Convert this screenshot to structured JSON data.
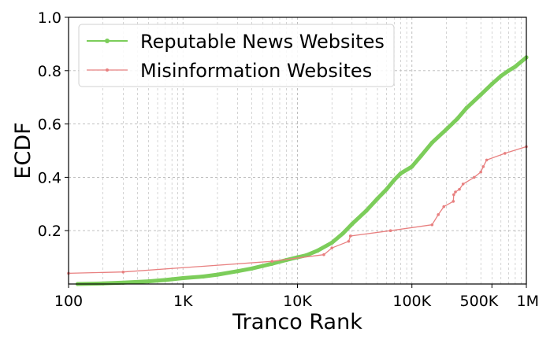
{
  "chart_data": {
    "type": "line",
    "title": "",
    "xlabel": "Tranco Rank",
    "ylabel": "ECDF",
    "xscale": "log",
    "xlim": [
      100,
      1000000
    ],
    "ylim": [
      0,
      1
    ],
    "grid": true,
    "legend_position": "top-left",
    "x_ticks": [
      {
        "value": 100,
        "label": "100"
      },
      {
        "value": 1000,
        "label": "1K"
      },
      {
        "value": 10000,
        "label": "10K"
      },
      {
        "value": 100000,
        "label": "100K"
      },
      {
        "value": 500000,
        "label": "500K"
      },
      {
        "value": 1000000,
        "label": "1M"
      }
    ],
    "y_ticks": [
      {
        "value": 0.2,
        "label": "0.2"
      },
      {
        "value": 0.4,
        "label": "0.4"
      },
      {
        "value": 0.6,
        "label": "0.6"
      },
      {
        "value": 0.8,
        "label": "0.8"
      },
      {
        "value": 1.0,
        "label": "1.0"
      }
    ],
    "series": [
      {
        "name": "Reputable News Websites",
        "color": "#7ccd5a",
        "x": [
          120,
          200,
          300,
          500,
          700,
          1000,
          1500,
          2000,
          3000,
          4000,
          5000,
          6000,
          8000,
          10000,
          12000,
          15000,
          20000,
          25000,
          30000,
          40000,
          50000,
          60000,
          70000,
          80000,
          100000,
          120000,
          150000,
          200000,
          250000,
          300000,
          400000,
          500000,
          600000,
          700000,
          800000,
          1000000
        ],
        "y": [
          0.0,
          0.002,
          0.005,
          0.01,
          0.015,
          0.022,
          0.028,
          0.035,
          0.048,
          0.058,
          0.068,
          0.076,
          0.09,
          0.1,
          0.108,
          0.125,
          0.155,
          0.19,
          0.225,
          0.275,
          0.32,
          0.355,
          0.39,
          0.415,
          0.44,
          0.48,
          0.53,
          0.58,
          0.62,
          0.66,
          0.71,
          0.75,
          0.78,
          0.8,
          0.815,
          0.85
        ]
      },
      {
        "name": "Misinformation Websites",
        "color": "#e88080",
        "x": [
          100,
          300,
          6000,
          17000,
          20000,
          28000,
          29000,
          65000,
          150000,
          170000,
          190000,
          230000,
          232000,
          240000,
          260000,
          280000,
          350000,
          400000,
          420000,
          450000,
          650000,
          1000000
        ],
        "y": [
          0.04,
          0.045,
          0.085,
          0.11,
          0.135,
          0.16,
          0.18,
          0.2,
          0.222,
          0.26,
          0.29,
          0.31,
          0.335,
          0.345,
          0.355,
          0.375,
          0.4,
          0.42,
          0.44,
          0.465,
          0.49,
          0.515
        ]
      }
    ]
  }
}
